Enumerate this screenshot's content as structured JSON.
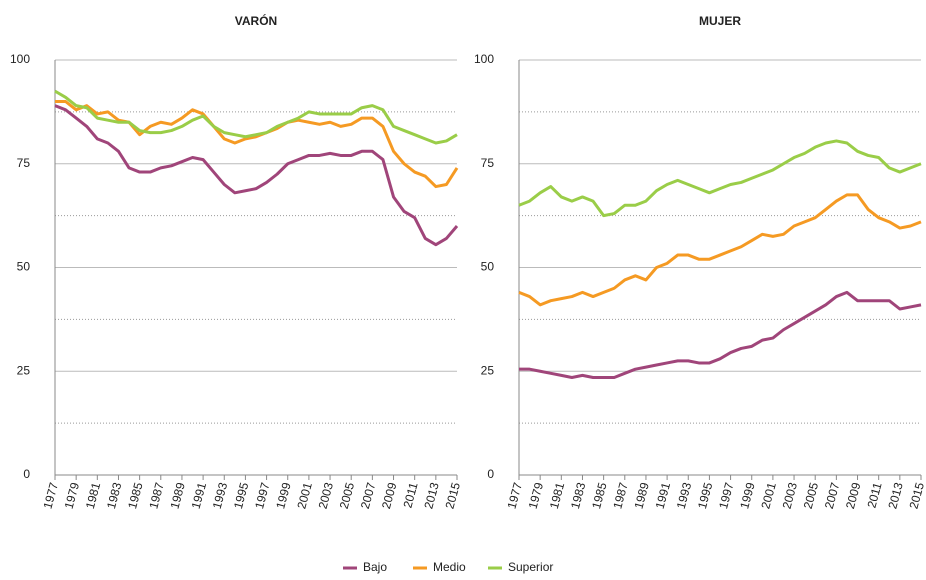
{
  "chart_data": [
    {
      "type": "line",
      "title": "VARÓN",
      "x": [
        1977,
        1978,
        1979,
        1980,
        1981,
        1982,
        1983,
        1984,
        1985,
        1986,
        1987,
        1988,
        1989,
        1990,
        1991,
        1992,
        1993,
        1994,
        1995,
        1996,
        1997,
        1998,
        1999,
        2000,
        2001,
        2002,
        2003,
        2004,
        2005,
        2006,
        2007,
        2008,
        2009,
        2010,
        2011,
        2012,
        2013,
        2014,
        2015
      ],
      "series": [
        {
          "name": "Bajo",
          "color": "#a0457a",
          "values": [
            89,
            88,
            86,
            84,
            81,
            80,
            78,
            74,
            73,
            73,
            74,
            74.5,
            75.5,
            76.5,
            76,
            73,
            70,
            68,
            68.5,
            69,
            70.5,
            72.5,
            75,
            76,
            77,
            77,
            77.5,
            77,
            77,
            78,
            78,
            76,
            67,
            63.5,
            62,
            57,
            55.5,
            57,
            60
          ]
        },
        {
          "name": "Medio",
          "color": "#f59a23",
          "values": [
            90,
            90,
            88,
            89,
            87,
            87.5,
            85.5,
            85,
            82,
            84,
            85,
            84.5,
            86,
            88,
            87,
            84,
            81,
            80,
            81,
            81.5,
            82.5,
            83.5,
            85,
            85.5,
            85,
            84.5,
            85,
            84,
            84.5,
            86,
            86,
            84,
            78,
            75,
            73,
            72,
            69.5,
            70,
            74
          ]
        },
        {
          "name": "Superior",
          "color": "#9acd48",
          "values": [
            92.5,
            91,
            89,
            88.5,
            86,
            85.5,
            85,
            85,
            83,
            82.5,
            82.5,
            83,
            84,
            85.5,
            86.5,
            84,
            82.5,
            82,
            81.5,
            82,
            82.5,
            84,
            85,
            86,
            87.5,
            87,
            87,
            87,
            87,
            88.5,
            89,
            88,
            84,
            83,
            82,
            81,
            80,
            80.5,
            82
          ]
        }
      ],
      "xlim": [
        1977,
        2015
      ],
      "xticks": [
        1977,
        1979,
        1981,
        1983,
        1985,
        1987,
        1989,
        1991,
        1993,
        1995,
        1997,
        1999,
        2001,
        2003,
        2005,
        2007,
        2009,
        2011,
        2013,
        2015
      ],
      "ylim": [
        0,
        100
      ],
      "yticks": [
        0,
        25,
        50,
        75,
        100
      ],
      "minor_yticks": [
        12.5,
        37.5,
        62.5,
        87.5
      ],
      "grid": true,
      "legend": "bottom"
    },
    {
      "type": "line",
      "title": "MUJER",
      "x": [
        1977,
        1978,
        1979,
        1980,
        1981,
        1982,
        1983,
        1984,
        1985,
        1986,
        1987,
        1988,
        1989,
        1990,
        1991,
        1992,
        1993,
        1994,
        1995,
        1996,
        1997,
        1998,
        1999,
        2000,
        2001,
        2002,
        2003,
        2004,
        2005,
        2006,
        2007,
        2008,
        2009,
        2010,
        2011,
        2012,
        2013,
        2014,
        2015
      ],
      "series": [
        {
          "name": "Bajo",
          "color": "#a0457a",
          "values": [
            25.5,
            25.5,
            25,
            24.5,
            24,
            23.5,
            24,
            23.5,
            23.5,
            23.5,
            24.5,
            25.5,
            26,
            26.5,
            27,
            27.5,
            27.5,
            27,
            27,
            28,
            29.5,
            30.5,
            31,
            32.5,
            33,
            35,
            36.5,
            38,
            39.5,
            41,
            43,
            44,
            42,
            42,
            42,
            42,
            40,
            40.5,
            41
          ]
        },
        {
          "name": "Medio",
          "color": "#f59a23",
          "values": [
            44,
            43,
            41,
            42,
            42.5,
            43,
            44,
            43,
            44,
            45,
            47,
            48,
            47,
            50,
            51,
            53,
            53,
            52,
            52,
            53,
            54,
            55,
            56.5,
            58,
            57.5,
            58,
            60,
            61,
            62,
            64,
            66,
            67.5,
            67.5,
            64,
            62,
            61,
            59.5,
            60,
            61
          ]
        },
        {
          "name": "Superior",
          "color": "#9acd48",
          "values": [
            65,
            66,
            68,
            69.5,
            67,
            66,
            67,
            66,
            62.5,
            63,
            65,
            65,
            66,
            68.5,
            70,
            71,
            70,
            69,
            68,
            69,
            70,
            70.5,
            71.5,
            72.5,
            73.5,
            75,
            76.5,
            77.5,
            79,
            80,
            80.5,
            80,
            78,
            77,
            76.5,
            74,
            73,
            74,
            75
          ]
        }
      ],
      "xlim": [
        1977,
        2015
      ],
      "xticks": [
        1977,
        1979,
        1981,
        1983,
        1985,
        1987,
        1989,
        1991,
        1993,
        1995,
        1997,
        1999,
        2001,
        2003,
        2005,
        2007,
        2009,
        2011,
        2013,
        2015
      ],
      "ylim": [
        0,
        100
      ],
      "yticks": [
        0,
        25,
        50,
        75,
        100
      ],
      "minor_yticks": [
        12.5,
        37.5,
        62.5,
        87.5
      ],
      "grid": true
    }
  ]
}
